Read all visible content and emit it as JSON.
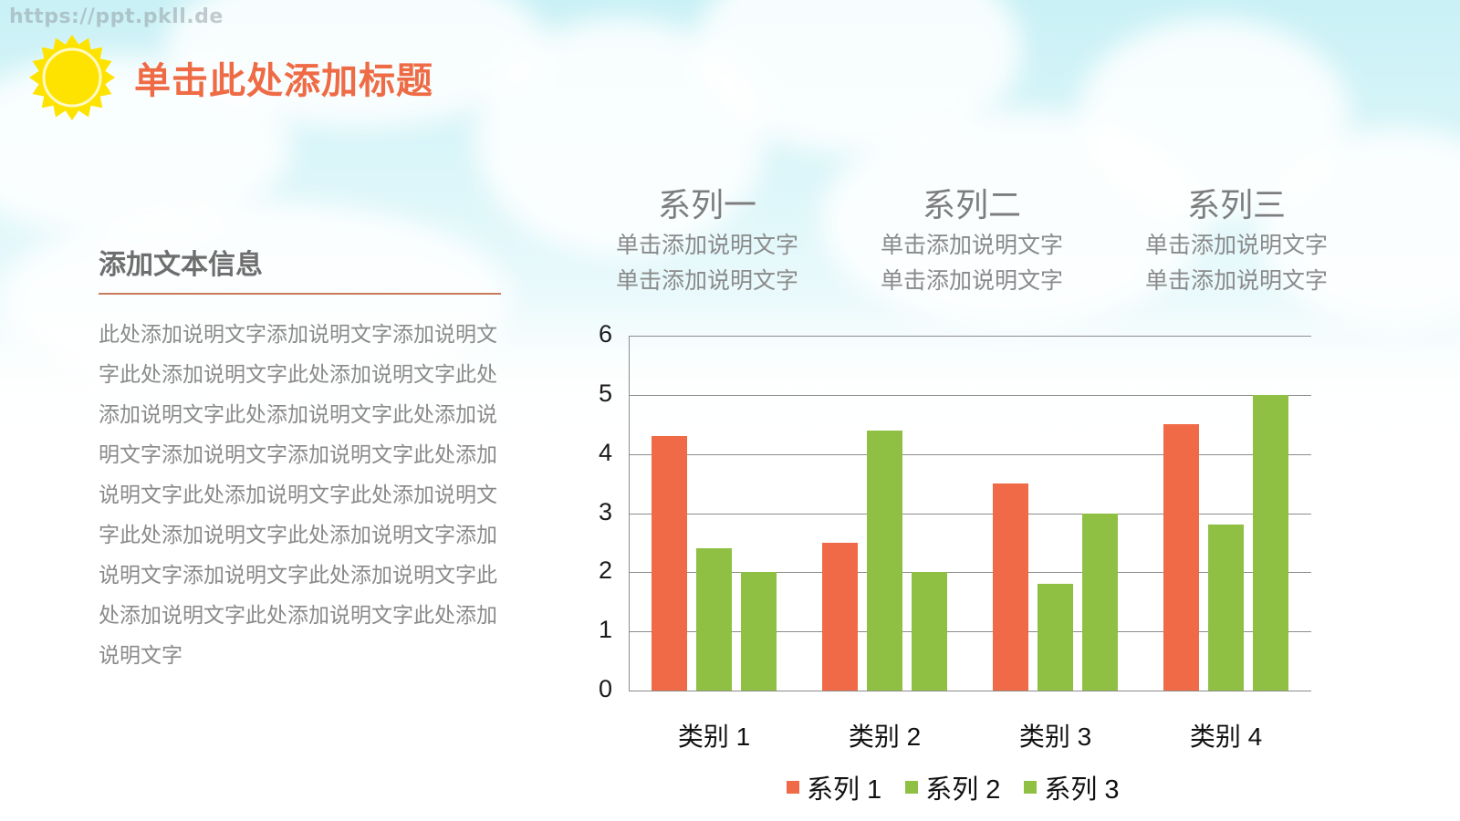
{
  "watermark": "https://ppt.pkll.de",
  "slide": {
    "title": "单击此处添加标题",
    "sun_icon": "sun-icon",
    "side_panel": {
      "heading": "添加文本信息",
      "body": "此处添加说明文字添加说明文字添加说明文字此处添加说明文字此处添加说明文字此处添加说明文字此处添加说明文字此处添加说明文字添加说明文字添加说明文字此处添加说明文字此处添加说明文字此处添加说明文字此处添加说明文字此处添加说明文字添加说明文字添加说明文字此处添加说明文字此处添加说明文字此处添加说明文字此处添加说明文字"
    },
    "series_blocks": [
      {
        "title": "系列一",
        "line1": "单击添加说明文字",
        "line2": "单击添加说明文字"
      },
      {
        "title": "系列二",
        "line1": "单击添加说明文字",
        "line2": "单击添加说明文字"
      },
      {
        "title": "系列三",
        "line1": "单击添加说明文字",
        "line2": "单击添加说明文字"
      }
    ]
  },
  "colors": {
    "title": "#ee6b45",
    "series1": "#f06a47",
    "series2": "#8fc043",
    "series3": "#8fc043",
    "sun": "#ffe300"
  },
  "chart_data": {
    "type": "bar",
    "title": "",
    "xlabel": "",
    "ylabel": "",
    "categories": [
      "类别 1",
      "类别 2",
      "类别 3",
      "类别 4"
    ],
    "series": [
      {
        "name": "系列 1",
        "color": "#f06a47",
        "values": [
          4.3,
          2.5,
          3.5,
          4.5
        ]
      },
      {
        "name": "系列 2",
        "color": "#8fc043",
        "values": [
          2.4,
          4.4,
          1.8,
          2.8
        ]
      },
      {
        "name": "系列 3",
        "color": "#8fc043",
        "values": [
          2.0,
          2.0,
          3.0,
          5.0
        ]
      }
    ],
    "ylim": [
      0,
      6
    ],
    "yticks": [
      "0",
      "1",
      "2",
      "3",
      "4",
      "5",
      "6"
    ],
    "grid": true,
    "legend_position": "bottom"
  }
}
